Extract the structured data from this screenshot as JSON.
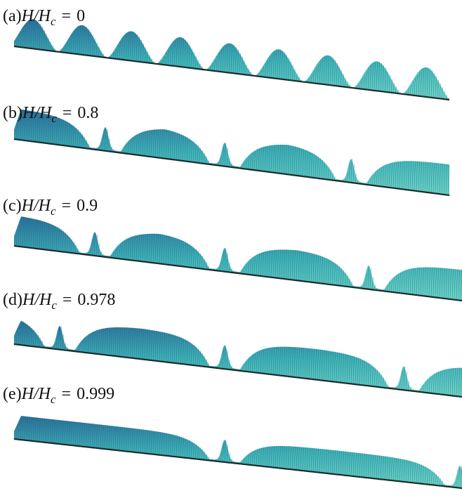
{
  "variable": "H/H",
  "subscript": "c",
  "equals": "=",
  "panels": [
    {
      "tag": "(a)",
      "value": "0"
    },
    {
      "tag": "(b)",
      "value": "0.8"
    },
    {
      "tag": "(c)",
      "value": "0.9"
    },
    {
      "tag": "(d)",
      "value": "0.978"
    },
    {
      "tag": "(e)",
      "value": "0.999"
    }
  ]
}
